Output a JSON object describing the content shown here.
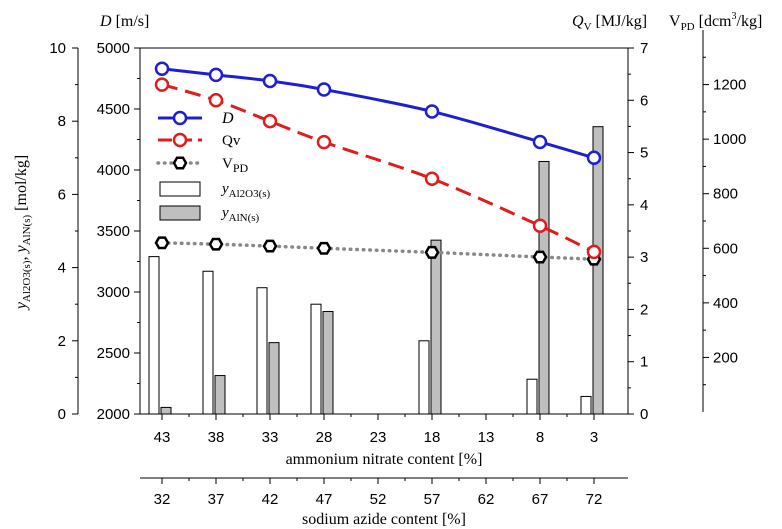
{
  "chart_data": {
    "type": "combo",
    "x_axis_primary": {
      "label": "ammonium nitrate content [%]",
      "ticks": [
        "43",
        "38",
        "33",
        "28",
        "23",
        "18",
        "13",
        "8",
        "3"
      ],
      "values": [
        43,
        38,
        33,
        28,
        23,
        18,
        13,
        8,
        3
      ]
    },
    "x_axis_secondary": {
      "label": "sodium azide content [%]",
      "ticks": [
        "32",
        "37",
        "42",
        "47",
        "52",
        "57",
        "62",
        "67",
        "72"
      ],
      "values": [
        32,
        37,
        42,
        47,
        52,
        57,
        62,
        67,
        72
      ]
    },
    "y_axis_molar": {
      "label_main": "y",
      "label_sub": "Al2O3(s)",
      "label_sep": ", ",
      "label_main2": "y",
      "label_sub2": "AlN(s)",
      "label_unit": " [mol/kg]",
      "ticks": [
        "0",
        "2",
        "4",
        "6",
        "8",
        "10"
      ],
      "range": [
        0,
        10
      ]
    },
    "y_axis_D": {
      "label": "D [m/s]",
      "label_var": "D",
      "label_unit": " [m/s]",
      "ticks": [
        "2000",
        "2500",
        "3000",
        "3500",
        "4000",
        "4500",
        "5000"
      ],
      "range": [
        2000,
        5000
      ]
    },
    "y_axis_Qv": {
      "label_var": "Q",
      "label_sub": "V",
      "label_unit": " [MJ/kg]",
      "ticks": [
        "0",
        "1",
        "2",
        "3",
        "4",
        "5",
        "6",
        "7"
      ],
      "range": [
        0,
        7
      ]
    },
    "y_axis_Vpd": {
      "label_var": "V",
      "label_sub": "PD",
      "label_unit": " [dcm",
      "label_sup": "3",
      "label_unit2": "/kg]",
      "ticks": [
        "200",
        "400",
        "600",
        "800",
        "1000",
        "1200"
      ],
      "range": [
        0,
        1400
      ]
    },
    "series": [
      {
        "name": "D",
        "kind": "line",
        "style": "solid",
        "color": "#1f1fd0",
        "marker": "circle",
        "x": [
          43,
          38,
          33,
          28,
          18,
          8,
          3
        ],
        "values": [
          4830,
          4780,
          4730,
          4660,
          4480,
          4230,
          4100
        ]
      },
      {
        "name": "Qv",
        "kind": "line",
        "style": "dashed",
        "color": "#e01c1c",
        "marker": "circle",
        "x": [
          43,
          38,
          33,
          28,
          18,
          8,
          3
        ],
        "values": [
          6.3,
          6.0,
          5.6,
          5.2,
          4.5,
          3.6,
          3.1
        ]
      },
      {
        "name": "VPD",
        "name_main": "V",
        "name_sub": "PD",
        "kind": "line",
        "style": "dotted",
        "color": "#888888",
        "marker": "hexagon",
        "x": [
          43,
          38,
          33,
          28,
          18,
          8,
          3
        ],
        "values": [
          620,
          615,
          608,
          600,
          585,
          568,
          560
        ]
      },
      {
        "name": "yAl2O3(s)",
        "name_main": "y",
        "name_sub": "Al2O3(s)",
        "kind": "bar",
        "color": "#ffffff",
        "stroke": "#000000",
        "x": [
          43,
          38,
          33,
          28,
          18,
          8,
          3
        ],
        "values": [
          4.3,
          3.9,
          3.45,
          3.0,
          2.0,
          0.95,
          0.48
        ]
      },
      {
        "name": "yAlN(s)",
        "name_main": "y",
        "name_sub": "AlN(s)",
        "kind": "bar",
        "color": "#bfbfbf",
        "stroke": "#000000",
        "x": [
          43,
          38,
          33,
          28,
          18,
          8,
          3
        ],
        "values": [
          0.18,
          1.05,
          1.95,
          2.8,
          4.75,
          6.9,
          7.85
        ]
      }
    ],
    "legend_position": "upper-left",
    "grid": false
  }
}
